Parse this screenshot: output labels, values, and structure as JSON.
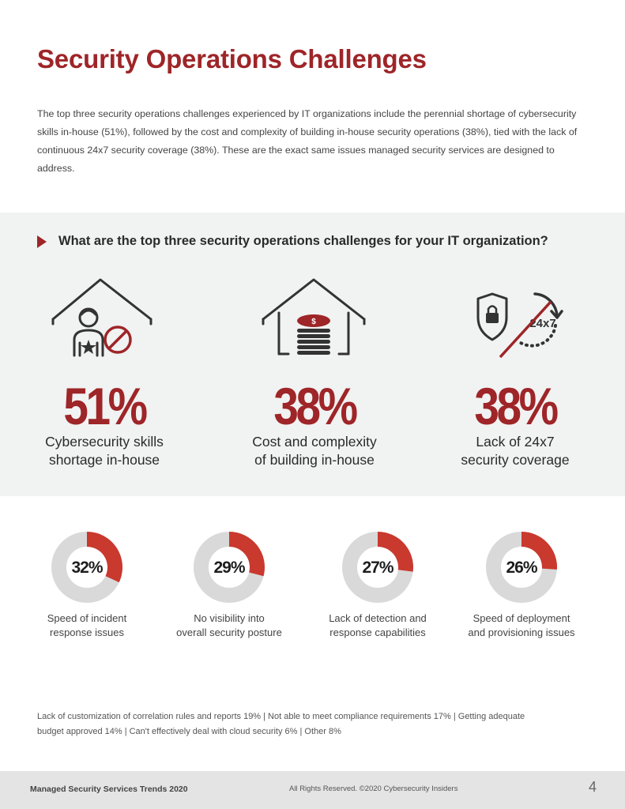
{
  "page": {
    "title": "Security Operations Challenges",
    "intro": "The top three security operations challenges experienced by IT organizations include the perennial shortage of cybersecurity skills in-house (51%), followed by the cost and complexity of building in-house security operations (38%), tied with the lack of continuous 24x7 security coverage (38%). These are the exact same issues managed security services are designed to address.",
    "question": "What are the top three security operations challenges for your IT organization?"
  },
  "chart_data": [
    {
      "type": "bar",
      "categories": [
        "Cybersecurity skills shortage in-house",
        "Cost and complexity of building in-house",
        "Lack of 24x7 security coverage"
      ],
      "values": [
        51,
        38,
        38
      ],
      "labels": [
        "51%",
        "38%",
        "38%"
      ],
      "label_lines": [
        [
          "Cybersecurity skills",
          "shortage in-house"
        ],
        [
          "Cost and complexity",
          "of building in-house"
        ],
        [
          "Lack of 24x7",
          "security coverage"
        ]
      ],
      "icons": [
        "person-prohibited-house-icon",
        "coins-house-icon",
        "24x7-lock-cycle-icon"
      ]
    },
    {
      "type": "pie",
      "categories": [
        "Speed of incident response issues",
        "No visibility into overall security posture",
        "Lack of detection and response capabilities",
        "Speed of deployment and provisioning issues"
      ],
      "values": [
        32,
        29,
        27,
        26
      ],
      "labels": [
        "32%",
        "29%",
        "27%",
        "26%"
      ],
      "label_lines": [
        [
          "Speed of incident",
          "response issues"
        ],
        [
          "No visibility into",
          "overall security posture"
        ],
        [
          "Lack of detection and",
          "response capabilities"
        ],
        [
          "Speed of deployment",
          "and provisioning issues"
        ]
      ]
    }
  ],
  "other_responses": {
    "line1": "Lack of customization of correlation rules and reports 19%  |  Not able to meet compliance requirements 17%  |  Getting adequate",
    "line2": "budget approved 14%  |  Can't effectively deal with cloud security 6%  |  Other 8%"
  },
  "icon_text": {
    "clock_label": "24x7"
  },
  "colors": {
    "accent": "#9e2528",
    "donut_fill": "#c9392e",
    "donut_track": "#d9d9d9",
    "band": "#f1f2f2"
  },
  "footer": {
    "left": "Managed Security Services Trends 2020",
    "center": "All Rights Reserved. ©2020 Cybersecurity Insiders",
    "page_number": "4"
  }
}
